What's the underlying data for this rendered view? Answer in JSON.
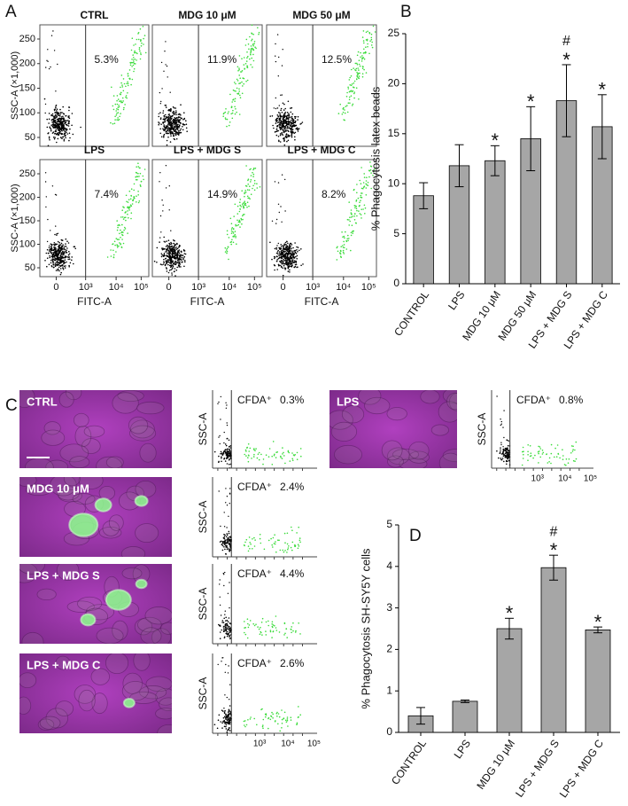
{
  "panel_labels": [
    "A",
    "B",
    "C",
    "D"
  ],
  "panel_a": {
    "y_label": "SSC-A (×1,000)",
    "x_label": "FITC-A",
    "yticks": [
      50,
      100,
      150,
      200,
      250
    ],
    "xtick_labels": [
      "0",
      "10³",
      "10⁴",
      "10⁵"
    ],
    "plots": [
      {
        "title": "CTRL",
        "value_label": "5.3%"
      },
      {
        "title": "MDG 10 μM",
        "value_label": "11.9%"
      },
      {
        "title": "MDG 50 μM",
        "value_label": "12.5%"
      },
      {
        "title": "LPS",
        "value_label": "7.4%"
      },
      {
        "title": "LPS + MDG S",
        "value_label": "14.9%"
      },
      {
        "title": "LPS + MDG C",
        "value_label": "8.2%"
      }
    ]
  },
  "chart_data": [
    {
      "type": "bar",
      "y_label": "% Phagocytosis latex beads",
      "categories": [
        "CONTROL",
        "LPS",
        "MDG 10 μM",
        "MDG 50 μM",
        "LPS + MDG S",
        "LPS + MDG C"
      ],
      "values": [
        8.8,
        11.8,
        12.3,
        14.5,
        18.3,
        15.7
      ],
      "errors": [
        1.3,
        2.1,
        1.5,
        3.2,
        3.6,
        3.2
      ],
      "significance": [
        null,
        null,
        [
          "*"
        ],
        [
          "*"
        ],
        [
          "#",
          "*"
        ],
        [
          "*"
        ]
      ],
      "color": "#a6a6a6",
      "ylim": [
        0,
        25
      ],
      "yticks": [
        0,
        5,
        10,
        15,
        20,
        25
      ]
    },
    {
      "type": "bar",
      "y_label": "% Phagocytosis SH-SY5Y cells",
      "categories": [
        "CONTROL",
        "LPS",
        "MDG 10 μM",
        "LPS + MDG S",
        "LPS + MDG C"
      ],
      "values": [
        0.4,
        0.75,
        2.5,
        3.97,
        2.47
      ],
      "errors": [
        0.2,
        0.03,
        0.25,
        0.3,
        0.07
      ],
      "significance": [
        null,
        null,
        [
          "*"
        ],
        [
          "#",
          "*"
        ],
        [
          "*"
        ]
      ],
      "color": "#a6a6a6",
      "ylim": [
        0,
        5
      ],
      "yticks": [
        0,
        1,
        2,
        3,
        4,
        5
      ]
    }
  ],
  "panel_c": {
    "y_label": "SSC-A",
    "gate_label": "CFDA⁺",
    "xtick_labels": [
      "10³",
      "10⁴",
      "10⁵"
    ],
    "images": [
      {
        "label": "CTRL",
        "value_label": "0.3%"
      },
      {
        "label": "MDG 10 μM",
        "value_label": "2.4%"
      },
      {
        "label": "LPS +  MDG S",
        "value_label": "4.4%"
      },
      {
        "label": "LPS + MDG C",
        "value_label": "2.6%"
      },
      {
        "label": "LPS",
        "value_label": "0.8%"
      }
    ]
  }
}
